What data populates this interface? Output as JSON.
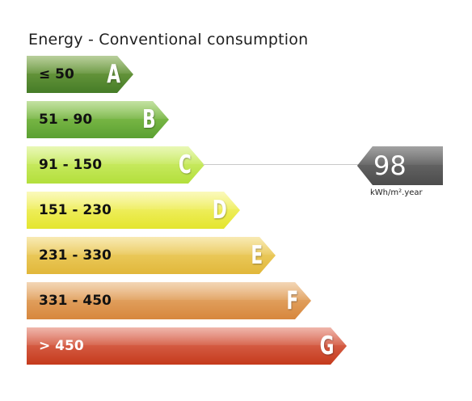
{
  "title": "Energy - Conventional consumption",
  "bars": [
    {
      "letter": "A",
      "range": "≤ 50",
      "top": "#7fa84a",
      "bottom": "#457c27",
      "text_color": "#111111"
    },
    {
      "letter": "B",
      "range": "51 - 90",
      "top": "#92c956",
      "bottom": "#5aa031",
      "text_color": "#111111"
    },
    {
      "letter": "C",
      "range": "91 - 150",
      "top": "#d7f27a",
      "bottom": "#b3df3c",
      "text_color": "#111111"
    },
    {
      "letter": "D",
      "range": "151 - 230",
      "top": "#f7f584",
      "bottom": "#e4e52d",
      "text_color": "#111111"
    },
    {
      "letter": "E",
      "range": "231 - 330",
      "top": "#f2d875",
      "bottom": "#e1b73a",
      "text_color": "#111111"
    },
    {
      "letter": "F",
      "range": "331 - 450",
      "top": "#e9b579",
      "bottom": "#d7873d",
      "text_color": "#111111"
    },
    {
      "letter": "G",
      "range": "> 450",
      "top": "#e27966",
      "bottom": "#c53a1c",
      "text_color": "#ffffff"
    }
  ],
  "indicator": {
    "value": "98",
    "unit": "kWh/m².year",
    "rating": "C",
    "badge_color": "#616161"
  }
}
